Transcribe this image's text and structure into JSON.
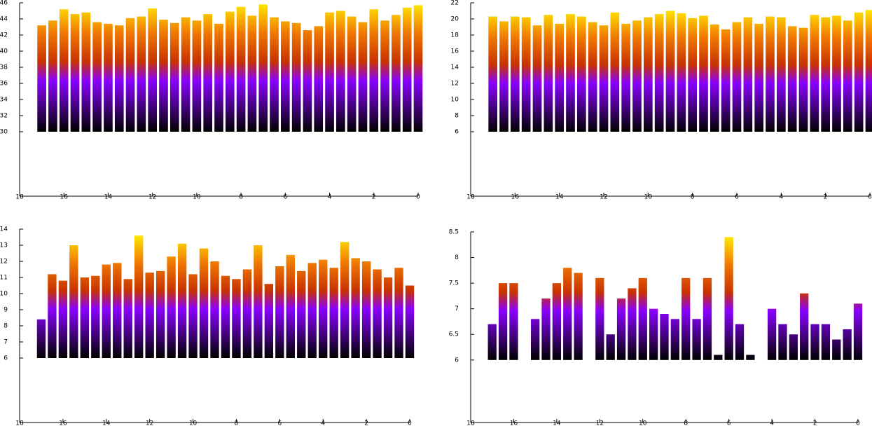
{
  "chart_data": [
    {
      "type": "bar",
      "base": 30,
      "xlim": [
        18,
        0
      ],
      "ylim": [
        22,
        46
      ],
      "xticks": [
        18,
        16,
        14,
        12,
        10,
        8,
        6,
        4,
        2,
        0
      ],
      "yticks": [
        30,
        32,
        34,
        36,
        38,
        40,
        42,
        44,
        46
      ],
      "palette": [
        "#000000",
        "#8a00ff",
        "#c83200",
        "#f07a00",
        "#ffe600"
      ],
      "x": [
        17,
        16.5,
        16,
        15.5,
        15,
        14.5,
        14,
        13.5,
        13,
        12.5,
        12,
        11.5,
        11,
        10.5,
        10,
        9.5,
        9,
        8.5,
        8,
        7.5,
        7,
        6.5,
        6,
        5.5,
        5,
        4.5,
        4,
        3.5,
        3,
        2.5,
        2,
        1.5,
        1,
        0.5,
        0
      ],
      "values": [
        43.2,
        43.8,
        45.2,
        44.6,
        44.8,
        43.6,
        43.4,
        43.2,
        44.1,
        44.3,
        45.3,
        43.9,
        43.5,
        44.2,
        43.8,
        44.6,
        43.4,
        44.9,
        45.5,
        44.4,
        45.8,
        44.2,
        43.7,
        43.5,
        42.6,
        43.1,
        44.8,
        45.0,
        44.3,
        43.6,
        45.2,
        43.8,
        44.5,
        45.4,
        45.7
      ]
    },
    {
      "type": "bar",
      "base": 6,
      "xlim": [
        18,
        0
      ],
      "ylim": [
        -2,
        22
      ],
      "xticks": [
        18,
        16,
        14,
        12,
        10,
        8,
        6,
        4,
        2,
        0
      ],
      "yticks": [
        6,
        8,
        10,
        12,
        14,
        16,
        18,
        20,
        22
      ],
      "palette": [
        "#000000",
        "#8a00ff",
        "#c83200",
        "#f07a00",
        "#ffe600"
      ],
      "x": [
        17,
        16.5,
        16,
        15.5,
        15,
        14.5,
        14,
        13.5,
        13,
        12.5,
        12,
        11.5,
        11,
        10.5,
        10,
        9.5,
        9,
        8.5,
        8,
        7.5,
        7,
        6.5,
        6,
        5.5,
        5,
        4.5,
        4,
        3.5,
        3,
        2.5,
        2,
        1.5,
        1,
        0.5,
        0
      ],
      "values": [
        20.3,
        19.7,
        20.3,
        20.2,
        19.2,
        20.5,
        19.4,
        20.6,
        20.3,
        19.6,
        19.2,
        20.8,
        19.4,
        19.8,
        20.2,
        20.6,
        21.0,
        20.7,
        20.1,
        20.4,
        19.3,
        18.7,
        19.6,
        20.2,
        19.4,
        20.3,
        20.2,
        19.1,
        18.9,
        20.5,
        20.2,
        20.4,
        19.8,
        20.8,
        21.1
      ]
    },
    {
      "type": "bar",
      "base": 6,
      "xlim": [
        18,
        0
      ],
      "ylim": [
        2,
        14
      ],
      "xticks": [
        18,
        16,
        14,
        12,
        10,
        8,
        6,
        4,
        2,
        0
      ],
      "yticks": [
        6,
        7,
        8,
        9,
        10,
        11,
        12,
        13,
        14
      ],
      "palette": [
        "#000000",
        "#8a00ff",
        "#c83200",
        "#f07a00",
        "#ffe600"
      ],
      "x": [
        17,
        16.5,
        16,
        15.5,
        15,
        14.5,
        14,
        13.5,
        13,
        12.5,
        12,
        11.5,
        11,
        10.5,
        10,
        9.5,
        9,
        8.5,
        8,
        7.5,
        7,
        6.5,
        6,
        5.5,
        5,
        4.5,
        4,
        3.5,
        3,
        2.5,
        2,
        1.5,
        1,
        0.5,
        0
      ],
      "values": [
        8.4,
        11.2,
        10.8,
        13.0,
        11.0,
        11.1,
        11.8,
        11.9,
        10.9,
        13.6,
        11.3,
        11.4,
        12.3,
        13.1,
        11.2,
        12.8,
        12.0,
        11.1,
        10.9,
        11.5,
        13.0,
        10.6,
        11.7,
        12.4,
        11.4,
        11.9,
        12.1,
        11.6,
        13.2,
        12.2,
        12.0,
        11.5,
        11.0,
        11.6,
        10.5
      ]
    },
    {
      "type": "bar",
      "base": 6,
      "xlim": [
        18,
        0
      ],
      "ylim": [
        4.78,
        8.5
      ],
      "xticks": [
        18,
        16,
        14,
        12,
        10,
        8,
        6,
        4,
        2,
        0
      ],
      "yticks": [
        6,
        6.5,
        7,
        7.5,
        8,
        8.5
      ],
      "palette": [
        "#000000",
        "#8a00ff",
        "#c83200",
        "#f07a00",
        "#ffe600"
      ],
      "x": [
        17,
        16.5,
        16,
        15.5,
        15,
        14.5,
        14,
        13.5,
        13,
        12.5,
        12,
        11.5,
        11,
        10.5,
        10,
        9.5,
        9,
        8.5,
        8,
        7.5,
        7,
        6.5,
        6,
        5.5,
        5,
        4.5,
        4,
        3.5,
        3,
        2.5,
        2,
        1.5,
        1,
        0.5,
        0
      ],
      "values": [
        6.7,
        7.5,
        7.5,
        null,
        6.8,
        7.2,
        7.5,
        7.8,
        7.7,
        null,
        7.6,
        6.5,
        7.2,
        7.4,
        7.6,
        7.0,
        6.9,
        6.8,
        7.6,
        6.8,
        7.6,
        6.1,
        8.4,
        6.7,
        6.1,
        null,
        7.0,
        6.7,
        6.5,
        7.3,
        6.7,
        6.7,
        6.4,
        6.6,
        7.1
      ]
    }
  ]
}
